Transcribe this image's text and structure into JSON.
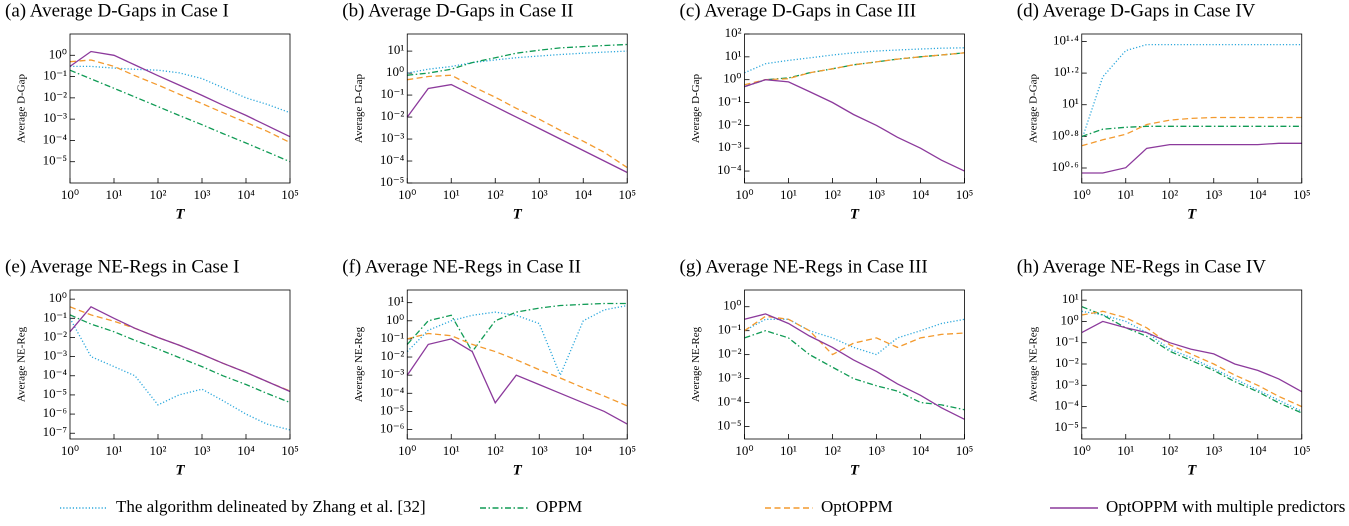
{
  "legend": [
    {
      "name": "The algorithm delineated by Zhang et al. [32]",
      "color": "#2aa7dc",
      "style": "dotted"
    },
    {
      "name": "OPPM",
      "color": "#109b55",
      "style": "dashdot"
    },
    {
      "name": "OptOPPM",
      "color": "#f39a2e",
      "style": "dashed"
    },
    {
      "name": "OptOPPM with multiple predictors",
      "color": "#8c3a9c",
      "style": "solid"
    }
  ],
  "chart_data": [
    {
      "type": "line",
      "title": "(a) Average D-Gaps in Case I",
      "xlabel": "T",
      "ylabel": "Average D-Gap",
      "xlog": true,
      "ylog": true,
      "x": [
        1,
        3,
        10,
        30,
        100,
        300,
        1000,
        3000,
        10000,
        30000,
        100000
      ],
      "xlim": [
        1,
        100000
      ],
      "xticks": [
        {
          "value": 1,
          "label": "10⁰"
        },
        {
          "value": 10,
          "label": "10¹"
        },
        {
          "value": 100,
          "label": "10²"
        },
        {
          "value": 1000,
          "label": "10³"
        },
        {
          "value": 10000,
          "label": "10⁴"
        },
        {
          "value": 100000,
          "label": "10⁵"
        }
      ],
      "ylim": [
        1e-06,
        10
      ],
      "yticks": [
        {
          "value": 1e-05,
          "label": "10⁻⁵"
        },
        {
          "value": 0.0001,
          "label": "10⁻⁴"
        },
        {
          "value": 0.001,
          "label": "10⁻³"
        },
        {
          "value": 0.01,
          "label": "10⁻²"
        },
        {
          "value": 0.1,
          "label": "10⁻¹"
        },
        {
          "value": 1,
          "label": "10⁰"
        }
      ],
      "series": [
        {
          "values": [
            0.3,
            0.3,
            0.25,
            0.22,
            0.2,
            0.15,
            0.08,
            0.03,
            0.01,
            0.005,
            0.002
          ]
        },
        {
          "values": [
            0.2,
            0.078,
            0.028,
            0.011,
            0.0039,
            0.0015,
            0.00055,
            0.00021,
            7.6e-05,
            2.9e-05,
            1e-05
          ]
        },
        {
          "values": [
            0.5,
            0.6,
            0.3,
            0.11,
            0.04,
            0.015,
            0.0054,
            0.002,
            0.0007,
            0.00027,
            8e-05
          ]
        },
        {
          "values": [
            0.3,
            1.5,
            1,
            0.35,
            0.11,
            0.04,
            0.013,
            0.0045,
            0.0015,
            0.0005,
            0.00015
          ]
        }
      ]
    },
    {
      "type": "line",
      "title": "(b) Average D-Gaps in Case II",
      "xlabel": "T",
      "ylabel": "Average D-Gap",
      "xlog": true,
      "ylog": true,
      "x": [
        1,
        3,
        10,
        30,
        100,
        300,
        1000,
        3000,
        10000,
        30000,
        100000
      ],
      "xlim": [
        1,
        100000
      ],
      "xticks": [
        {
          "value": 1,
          "label": "10⁰"
        },
        {
          "value": 10,
          "label": "10¹"
        },
        {
          "value": 100,
          "label": "10²"
        },
        {
          "value": 1000,
          "label": "10³"
        },
        {
          "value": 10000,
          "label": "10⁴"
        },
        {
          "value": 100000,
          "label": "10⁵"
        }
      ],
      "ylim": [
        1e-05,
        60
      ],
      "yticks": [
        {
          "value": 1e-05,
          "label": "10⁻⁵"
        },
        {
          "value": 0.0001,
          "label": "10⁻⁴"
        },
        {
          "value": 0.001,
          "label": "10⁻³"
        },
        {
          "value": 0.01,
          "label": "10⁻²"
        },
        {
          "value": 0.1,
          "label": "10⁻¹"
        },
        {
          "value": 1,
          "label": "10⁰"
        },
        {
          "value": 10,
          "label": "10¹"
        }
      ],
      "series": [
        {
          "values": [
            1,
            1.5,
            2,
            3,
            4,
            5,
            6,
            7,
            8,
            9,
            10
          ]
        },
        {
          "values": [
            0.8,
            1,
            1.5,
            3,
            5,
            8,
            11,
            14,
            16,
            18,
            20
          ]
        },
        {
          "values": [
            0.5,
            0.7,
            0.8,
            0.25,
            0.08,
            0.025,
            0.008,
            0.0025,
            0.0008,
            0.00025,
            5e-05
          ]
        },
        {
          "values": [
            0.01,
            0.2,
            0.3,
            0.1,
            0.03,
            0.01,
            0.003,
            0.001,
            0.0003,
            0.0001,
            3e-05
          ]
        }
      ]
    },
    {
      "type": "line",
      "title": "(c) Average D-Gaps in Case III",
      "xlabel": "T",
      "ylabel": "Average D-Gap",
      "xlog": true,
      "ylog": true,
      "x": [
        1,
        3,
        10,
        30,
        100,
        300,
        1000,
        3000,
        10000,
        30000,
        100000
      ],
      "xlim": [
        1,
        100000
      ],
      "xticks": [
        {
          "value": 1,
          "label": "10⁰"
        },
        {
          "value": 10,
          "label": "10¹"
        },
        {
          "value": 100,
          "label": "10²"
        },
        {
          "value": 1000,
          "label": "10³"
        },
        {
          "value": 10000,
          "label": "10⁴"
        },
        {
          "value": 100000,
          "label": "10⁵"
        }
      ],
      "ylim": [
        3e-05,
        100
      ],
      "yticks": [
        {
          "value": 0.0001,
          "label": "10⁻⁴"
        },
        {
          "value": 0.001,
          "label": "10⁻³"
        },
        {
          "value": 0.01,
          "label": "10⁻²"
        },
        {
          "value": 0.1,
          "label": "10⁻¹"
        },
        {
          "value": 1,
          "label": "10⁰"
        },
        {
          "value": 10,
          "label": "10¹"
        },
        {
          "value": 100,
          "label": "10²"
        }
      ],
      "series": [
        {
          "values": [
            2,
            5,
            7,
            9,
            12,
            15,
            18,
            20,
            22,
            24,
            25
          ]
        },
        {
          "values": [
            0.5,
            1,
            1.2,
            2,
            3,
            4.5,
            6,
            8,
            10,
            12,
            15
          ]
        },
        {
          "values": [
            0.6,
            1,
            1.1,
            2,
            3,
            4.5,
            6,
            8,
            10,
            12,
            15
          ]
        },
        {
          "values": [
            0.5,
            1,
            0.8,
            0.3,
            0.1,
            0.03,
            0.01,
            0.003,
            0.001,
            0.0003,
            0.0001
          ]
        }
      ]
    },
    {
      "type": "line",
      "title": "(d) Average D-Gaps in Case IV",
      "xlabel": "T",
      "ylabel": "Average D-Gap",
      "xlog": true,
      "ylog": true,
      "x": [
        1,
        3,
        10,
        30,
        100,
        300,
        1000,
        3000,
        10000,
        30000,
        100000
      ],
      "xlim": [
        1,
        100000
      ],
      "xticks": [
        {
          "value": 1,
          "label": "10⁰"
        },
        {
          "value": 10,
          "label": "10¹"
        },
        {
          "value": 100,
          "label": "10²"
        },
        {
          "value": 1000,
          "label": "10³"
        },
        {
          "value": 10000,
          "label": "10⁴"
        },
        {
          "value": 100000,
          "label": "10⁵"
        }
      ],
      "ylim": [
        3.2,
        28
      ],
      "yticks": [
        {
          "value": 3.981,
          "label": "10⁰·⁶"
        },
        {
          "value": 6.31,
          "label": "10⁰·⁸"
        },
        {
          "value": 10,
          "label": "10¹"
        },
        {
          "value": 15.85,
          "label": "10¹·²"
        },
        {
          "value": 25.12,
          "label": "10¹·⁴"
        }
      ],
      "series": [
        {
          "values": [
            6,
            15,
            22,
            24,
            24,
            24,
            24,
            24,
            24,
            24,
            24
          ]
        },
        {
          "values": [
            6.3,
            7,
            7.2,
            7.3,
            7.3,
            7.3,
            7.3,
            7.3,
            7.3,
            7.3,
            7.3
          ]
        },
        {
          "values": [
            5.5,
            6,
            6.5,
            7.5,
            8,
            8.2,
            8.3,
            8.3,
            8.3,
            8.3,
            8.3
          ]
        },
        {
          "values": [
            3.7,
            3.7,
            4,
            5.3,
            5.6,
            5.6,
            5.6,
            5.6,
            5.6,
            5.7,
            5.7
          ]
        }
      ]
    },
    {
      "type": "line",
      "title": "(e) Average NE-Regs in Case I",
      "xlabel": "T",
      "ylabel": "Average NE-Reg",
      "xlog": true,
      "ylog": true,
      "x": [
        1,
        3,
        10,
        30,
        100,
        300,
        1000,
        3000,
        10000,
        30000,
        100000
      ],
      "xlim": [
        1,
        100000
      ],
      "xticks": [
        {
          "value": 1,
          "label": "10⁰"
        },
        {
          "value": 10,
          "label": "10¹"
        },
        {
          "value": 100,
          "label": "10²"
        },
        {
          "value": 1000,
          "label": "10³"
        },
        {
          "value": 10000,
          "label": "10⁴"
        },
        {
          "value": 100000,
          "label": "10⁵"
        }
      ],
      "ylim": [
        5e-08,
        3
      ],
      "yticks": [
        {
          "value": 1e-07,
          "label": "10⁻⁷"
        },
        {
          "value": 1e-06,
          "label": "10⁻⁶"
        },
        {
          "value": 1e-05,
          "label": "10⁻⁵"
        },
        {
          "value": 0.0001,
          "label": "10⁻⁴"
        },
        {
          "value": 0.001,
          "label": "10⁻³"
        },
        {
          "value": 0.01,
          "label": "10⁻²"
        },
        {
          "value": 0.1,
          "label": "10⁻¹"
        },
        {
          "value": 1,
          "label": "10⁰"
        }
      ],
      "series": [
        {
          "values": [
            0.1,
            0.001,
            0.0003,
            0.0001,
            3e-06,
            1e-05,
            2e-05,
            5e-06,
            1e-06,
            3e-07,
            1.5e-07
          ]
        },
        {
          "values": [
            0.15,
            0.05,
            0.02,
            0.007,
            0.0025,
            0.0009,
            0.0003,
            0.0001,
            3.5e-05,
            1.2e-05,
            4e-06
          ]
        },
        {
          "values": [
            0.4,
            0.15,
            0.07,
            0.03,
            0.01,
            0.004,
            0.0013,
            0.00045,
            0.00015,
            5e-05,
            1.6e-05
          ]
        },
        {
          "values": [
            0.02,
            0.4,
            0.1,
            0.03,
            0.01,
            0.004,
            0.0013,
            0.00045,
            0.00015,
            5e-05,
            1.5e-05
          ]
        }
      ]
    },
    {
      "type": "line",
      "title": "(f) Average NE-Regs in Case II",
      "xlabel": "T",
      "ylabel": "Average NE-Reg",
      "xlog": true,
      "ylog": true,
      "x": [
        1,
        3,
        10,
        30,
        100,
        300,
        1000,
        3000,
        10000,
        30000,
        100000
      ],
      "xlim": [
        1,
        100000
      ],
      "xticks": [
        {
          "value": 1,
          "label": "10⁰"
        },
        {
          "value": 10,
          "label": "10¹"
        },
        {
          "value": 100,
          "label": "10²"
        },
        {
          "value": 1000,
          "label": "10³"
        },
        {
          "value": 10000,
          "label": "10⁴"
        },
        {
          "value": 100000,
          "label": "10⁵"
        }
      ],
      "ylim": [
        3e-07,
        50
      ],
      "yticks": [
        {
          "value": 1e-06,
          "label": "10⁻⁶"
        },
        {
          "value": 1e-05,
          "label": "10⁻⁵"
        },
        {
          "value": 0.0001,
          "label": "10⁻⁴"
        },
        {
          "value": 0.001,
          "label": "10⁻³"
        },
        {
          "value": 0.01,
          "label": "10⁻²"
        },
        {
          "value": 0.1,
          "label": "10⁻¹"
        },
        {
          "value": 1,
          "label": "10⁰"
        },
        {
          "value": 10,
          "label": "10¹"
        }
      ],
      "series": [
        {
          "values": [
            0.02,
            0.3,
            1,
            2,
            3,
            2,
            0.7,
            0.001,
            1,
            4,
            7
          ]
        },
        {
          "values": [
            0.05,
            1,
            2,
            0.02,
            1,
            3,
            5,
            7,
            8,
            9,
            9
          ]
        },
        {
          "values": [
            0.1,
            0.2,
            0.15,
            0.05,
            0.02,
            0.007,
            0.002,
            0.0007,
            0.0002,
            7e-05,
            2e-05
          ]
        },
        {
          "values": [
            0.001,
            0.05,
            0.1,
            0.02,
            3e-05,
            0.001,
            0.0003,
            0.0001,
            3e-05,
            1e-05,
            2e-06
          ]
        }
      ]
    },
    {
      "type": "line",
      "title": "(g) Average NE-Regs in Case III",
      "xlabel": "T",
      "ylabel": "Average NE-Reg",
      "xlog": true,
      "ylog": true,
      "x": [
        1,
        3,
        10,
        30,
        100,
        300,
        1000,
        3000,
        10000,
        30000,
        100000
      ],
      "xlim": [
        1,
        100000
      ],
      "xticks": [
        {
          "value": 1,
          "label": "10⁰"
        },
        {
          "value": 10,
          "label": "10¹"
        },
        {
          "value": 100,
          "label": "10²"
        },
        {
          "value": 1000,
          "label": "10³"
        },
        {
          "value": 10000,
          "label": "10⁴"
        },
        {
          "value": 100000,
          "label": "10⁵"
        }
      ],
      "ylim": [
        3e-06,
        5
      ],
      "yticks": [
        {
          "value": 1e-05,
          "label": "10⁻⁵"
        },
        {
          "value": 0.0001,
          "label": "10⁻⁴"
        },
        {
          "value": 0.001,
          "label": "10⁻³"
        },
        {
          "value": 0.01,
          "label": "10⁻²"
        },
        {
          "value": 0.1,
          "label": "10⁻¹"
        },
        {
          "value": 1,
          "label": "10⁰"
        }
      ],
      "series": [
        {
          "values": [
            0.1,
            0.3,
            0.3,
            0.1,
            0.05,
            0.02,
            0.01,
            0.05,
            0.1,
            0.2,
            0.3
          ]
        },
        {
          "values": [
            0.05,
            0.1,
            0.05,
            0.01,
            0.003,
            0.001,
            0.0005,
            0.0003,
            0.0001,
            8e-05,
            5e-05
          ]
        },
        {
          "values": [
            0.1,
            0.4,
            0.3,
            0.1,
            0.01,
            0.03,
            0.05,
            0.02,
            0.05,
            0.07,
            0.08
          ]
        },
        {
          "values": [
            0.3,
            0.5,
            0.2,
            0.06,
            0.02,
            0.006,
            0.002,
            0.0006,
            0.0002,
            6e-05,
            2e-05
          ]
        }
      ]
    },
    {
      "type": "line",
      "title": "(h) Average NE-Regs in Case IV",
      "xlabel": "T",
      "ylabel": "Average NE-Reg",
      "xlog": true,
      "ylog": true,
      "x": [
        1,
        3,
        10,
        30,
        100,
        300,
        1000,
        3000,
        10000,
        30000,
        100000
      ],
      "xlim": [
        1,
        100000
      ],
      "xticks": [
        {
          "value": 1,
          "label": "10⁰"
        },
        {
          "value": 10,
          "label": "10¹"
        },
        {
          "value": 100,
          "label": "10²"
        },
        {
          "value": 1000,
          "label": "10³"
        },
        {
          "value": 10000,
          "label": "10⁴"
        },
        {
          "value": 100000,
          "label": "10⁵"
        }
      ],
      "ylim": [
        3e-06,
        30
      ],
      "yticks": [
        {
          "value": 1e-05,
          "label": "10⁻⁵"
        },
        {
          "value": 0.0001,
          "label": "10⁻⁴"
        },
        {
          "value": 0.001,
          "label": "10⁻³"
        },
        {
          "value": 0.01,
          "label": "10⁻²"
        },
        {
          "value": 0.1,
          "label": "10⁻¹"
        },
        {
          "value": 1,
          "label": "10⁰"
        },
        {
          "value": 10,
          "label": "10¹"
        }
      ],
      "series": [
        {
          "values": [
            3,
            2,
            1,
            0.3,
            0.05,
            0.02,
            0.006,
            0.002,
            0.0006,
            0.0002,
            6e-05
          ]
        },
        {
          "values": [
            5,
            2,
            0.5,
            0.2,
            0.04,
            0.015,
            0.005,
            0.0015,
            0.0005,
            0.00015,
            5e-05
          ]
        },
        {
          "values": [
            2,
            3,
            1.5,
            0.5,
            0.08,
            0.03,
            0.01,
            0.003,
            0.001,
            0.0003,
            0.0001
          ]
        },
        {
          "values": [
            0.3,
            1,
            0.5,
            0.3,
            0.1,
            0.05,
            0.03,
            0.01,
            0.005,
            0.002,
            0.0005
          ]
        }
      ]
    }
  ]
}
